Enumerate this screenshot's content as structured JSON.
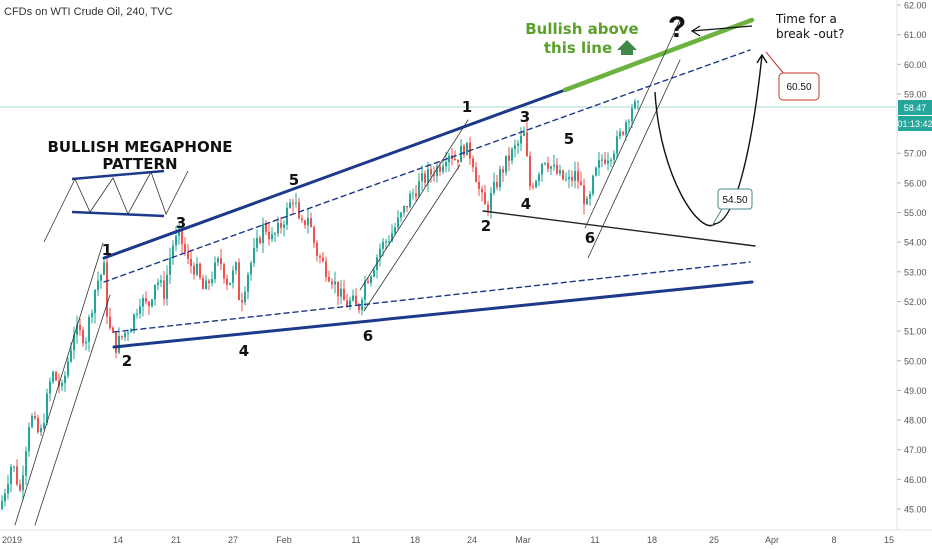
{
  "header": {
    "title": "CFDs on WTI Crude Oil, 240, TVC"
  },
  "chart_data": {
    "type": "candlestick",
    "symbol_title": "CFDs on WTI Crude Oil, 240, TVC",
    "y_ticks": [
      "62.00",
      "61.00",
      "60.00",
      "59.00",
      "58.00",
      "57.00",
      "56.00",
      "55.00",
      "54.00",
      "53.00",
      "52.00",
      "51.00",
      "50.00",
      "49.00",
      "48.00",
      "47.00",
      "46.00",
      "45.00"
    ],
    "ylim": [
      44.6,
      62.3
    ],
    "x_ticks": [
      "2019",
      "14",
      "21",
      "27",
      "Feb",
      "11",
      "18",
      "24",
      "Mar",
      "11",
      "18",
      "25",
      "Apr",
      "8",
      "15"
    ],
    "last_price": "58.47",
    "countdown": "01:13:42",
    "price_path": [
      [
        0,
        45.0
      ],
      [
        12,
        46.6
      ],
      [
        20,
        45.6
      ],
      [
        30,
        48.2
      ],
      [
        40,
        47.4
      ],
      [
        52,
        49.6
      ],
      [
        62,
        49.0
      ],
      [
        74,
        51.0
      ],
      [
        86,
        50.8
      ],
      [
        96,
        52.6
      ],
      [
        104,
        53.1
      ],
      [
        108,
        51.2
      ],
      [
        116,
        50.5
      ],
      [
        124,
        50.9
      ],
      [
        132,
        51.3
      ],
      [
        140,
        52.1
      ],
      [
        148,
        51.8
      ],
      [
        156,
        52.8
      ],
      [
        164,
        52.3
      ],
      [
        172,
        53.9
      ],
      [
        180,
        54.2
      ],
      [
        188,
        53.3
      ],
      [
        196,
        53.1
      ],
      [
        204,
        52.3
      ],
      [
        212,
        52.9
      ],
      [
        220,
        53.4
      ],
      [
        228,
        52.6
      ],
      [
        236,
        53.1
      ],
      [
        240,
        51.9
      ],
      [
        248,
        53.0
      ],
      [
        256,
        53.8
      ],
      [
        264,
        54.6
      ],
      [
        272,
        54.1
      ],
      [
        280,
        54.5
      ],
      [
        288,
        55.1
      ],
      [
        294,
        55.6
      ],
      [
        300,
        54.4
      ],
      [
        308,
        54.9
      ],
      [
        316,
        53.7
      ],
      [
        324,
        53.2
      ],
      [
        332,
        52.8
      ],
      [
        340,
        52.2
      ],
      [
        346,
        51.9
      ],
      [
        352,
        52.0
      ],
      [
        358,
        51.7
      ],
      [
        364,
        52.6
      ],
      [
        372,
        53.1
      ],
      [
        380,
        53.8
      ],
      [
        390,
        54.2
      ],
      [
        400,
        54.8
      ],
      [
        410,
        55.5
      ],
      [
        420,
        56.0
      ],
      [
        430,
        56.3
      ],
      [
        440,
        56.6
      ],
      [
        448,
        57.1
      ],
      [
        456,
        56.8
      ],
      [
        464,
        57.2
      ],
      [
        472,
        56.9
      ],
      [
        480,
        55.6
      ],
      [
        486,
        55.1
      ],
      [
        492,
        55.6
      ],
      [
        500,
        56.3
      ],
      [
        508,
        56.8
      ],
      [
        516,
        57.2
      ],
      [
        524,
        57.6
      ],
      [
        530,
        55.9
      ],
      [
        536,
        56.2
      ],
      [
        544,
        56.9
      ],
      [
        552,
        56.5
      ],
      [
        560,
        56.2
      ],
      [
        568,
        56.0
      ],
      [
        576,
        56.3
      ],
      [
        582,
        55.7
      ],
      [
        588,
        55.1
      ],
      [
        594,
        56.2
      ],
      [
        602,
        56.8
      ],
      [
        610,
        57.0
      ],
      [
        618,
        57.4
      ],
      [
        626,
        58.1
      ],
      [
        632,
        58.6
      ],
      [
        638,
        58.5
      ]
    ],
    "wave_labels": [
      {
        "text": "1",
        "x": 107,
        "y": 255
      },
      {
        "text": "2",
        "x": 127,
        "y": 366
      },
      {
        "text": "3",
        "x": 181,
        "y": 228
      },
      {
        "text": "4",
        "x": 244,
        "y": 356
      },
      {
        "text": "5",
        "x": 294,
        "y": 185
      },
      {
        "text": "6",
        "x": 368,
        "y": 341
      },
      {
        "text": "1",
        "x": 467,
        "y": 112
      },
      {
        "text": "2",
        "x": 486,
        "y": 231
      },
      {
        "text": "3",
        "x": 525,
        "y": 122
      },
      {
        "text": "4",
        "x": 526,
        "y": 209
      },
      {
        "text": "5",
        "x": 569,
        "y": 144
      },
      {
        "text": "6",
        "x": 590,
        "y": 243
      }
    ],
    "lines": {
      "upper_trend": [
        [
          104,
          258
        ],
        [
          565,
          90
        ]
      ],
      "green_trend": [
        [
          565,
          90
        ],
        [
          752,
          20
        ]
      ],
      "upper_dash": [
        [
          104,
          282
        ],
        [
          750,
          50
        ]
      ],
      "lower_trend": [
        [
          114,
          347
        ],
        [
          752,
          282
        ]
      ],
      "lower_dash": [
        [
          114,
          332
        ],
        [
          750,
          262
        ]
      ],
      "mini_support": [
        [
          483,
          211
        ],
        [
          755,
          246
        ]
      ],
      "ch1_a": [
        [
          15,
          525
        ],
        [
          103,
          243
        ]
      ],
      "ch1_b": [
        [
          35,
          525
        ],
        [
          110,
          295
        ]
      ],
      "ch2_a": [
        [
          360,
          290
        ],
        [
          468,
          120
        ]
      ],
      "ch2_b": [
        [
          364,
          311
        ],
        [
          460,
          165
        ]
      ],
      "ch3_a": [
        [
          585,
          228
        ],
        [
          680,
          20
        ]
      ],
      "ch3_b": [
        [
          588,
          258
        ],
        [
          680,
          60
        ]
      ],
      "proj_down": [
        [
          655,
          92
        ],
        [
          660,
          178
        ],
        [
          700,
          236
        ],
        [
          715,
          224
        ]
      ],
      "proj_up": [
        [
          713,
          224
        ],
        [
          735,
          225
        ],
        [
          752,
          150
        ],
        [
          762,
          55
        ]
      ],
      "arrow_left": [
        [
          752,
          26
        ],
        [
          692,
          31
        ]
      ]
    }
  },
  "annotations": {
    "megaphone_title": "BULLISH MEGAPHONE",
    "megaphone_subtitle": "PATTERN",
    "bullish_line1": "Bullish above",
    "bullish_line2": "this line",
    "question": "?",
    "breakout_line1": "Time for a",
    "breakout_line2": "break -out?",
    "target_low": "54.50",
    "target_high": "60.50"
  },
  "colors": {
    "trend_blue": "#1d3a8a",
    "green_line": "#6bb23f",
    "green_text": "#5aa02c",
    "up_candle": "#26a69a",
    "down_candle": "#ef5350",
    "last_price_bg": "#26a69a",
    "hline": "#a8d8d4",
    "target_high_border": "#c0392b",
    "target_low_border": "#4a8a8a"
  }
}
